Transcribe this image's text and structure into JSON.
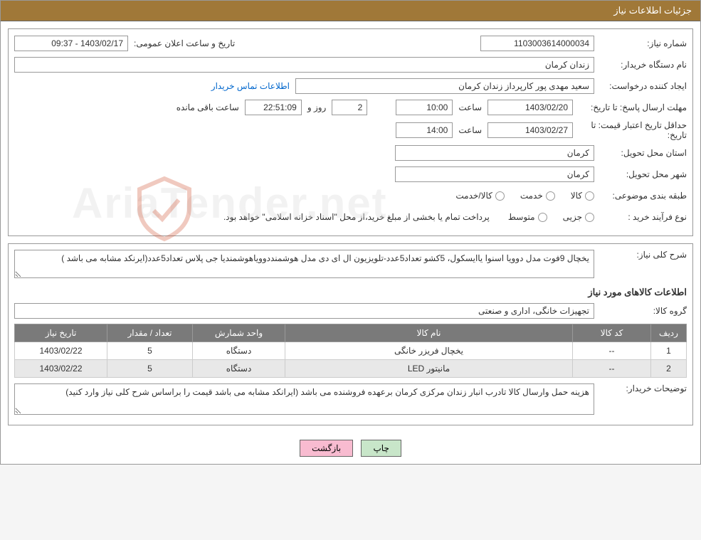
{
  "header": {
    "title": "جزئیات اطلاعات نیاز"
  },
  "fields": {
    "need_number_label": "شماره نیاز:",
    "need_number": "1103003614000034",
    "announce_label": "تاریخ و ساعت اعلان عمومی:",
    "announce_value": "1403/02/17 - 09:37",
    "buyer_org_label": "نام دستگاه خریدار:",
    "buyer_org": "زندان کرمان",
    "requester_label": "ایجاد کننده درخواست:",
    "requester": "سعید مهدی پور کارپرداز زندان کرمان",
    "contact_link": "اطلاعات تماس خریدار",
    "deadline_send_label": "مهلت ارسال پاسخ: تا تاریخ:",
    "deadline_send_date": "1403/02/20",
    "hour_label": "ساعت",
    "deadline_send_time": "10:00",
    "days_val": "2",
    "days_label": "روز و",
    "countdown": "22:51:09",
    "remaining_label": "ساعت باقی مانده",
    "price_valid_label": "حداقل تاریخ اعتبار قیمت: تا تاریخ:",
    "price_valid_date": "1403/02/27",
    "price_valid_time": "14:00",
    "delivery_prov_label": "استان محل تحویل:",
    "delivery_prov": "کرمان",
    "delivery_city_label": "شهر محل تحویل:",
    "delivery_city": "کرمان",
    "category_label": "طبقه بندی موضوعی:",
    "cat_goods": "کالا",
    "cat_service": "خدمت",
    "cat_goods_service": "کالا/خدمت",
    "purchase_type_label": "نوع فرآیند خرید :",
    "pt_minor": "جزیی",
    "pt_medium": "متوسط",
    "purchase_note": "پرداخت تمام یا بخشی از مبلغ خرید،از محل \"اسناد خزانه اسلامی\" خواهد بود."
  },
  "desc": {
    "summary_label": "شرح کلی نیاز:",
    "summary_text": "یخچال 9فوت مدل دوویا اسنوا یاایسکول، 5کشو تعداد5عدد-تلویزیون ال ای دی مدل هوشمنددوویاهوشمندیا جی پلاس تعداد5عدد(ایرنکد مشابه می باشد )",
    "items_header": "اطلاعات کالاهای مورد نیاز",
    "group_label": "گروه کالا:",
    "group_value": "تجهیزات خانگی، اداری و صنعتی",
    "buyer_notes_label": "توضیحات خریدار:",
    "buyer_notes": "هزینه حمل وارسال کالا تادرب انبار زندان مرکزی کرمان برعهده فروشنده می باشد (ایرانکد مشابه می باشد قیمت را براساس شرح کلی نیاز وارد کنید)"
  },
  "table": {
    "cols": {
      "row": "ردیف",
      "code": "کد کالا",
      "name": "نام کالا",
      "unit": "واحد شمارش",
      "qty": "تعداد / مقدار",
      "date": "تاریخ نیاز"
    },
    "rows": [
      {
        "row": "1",
        "code": "--",
        "name": "یخچال فریزر خانگی",
        "unit": "دستگاه",
        "qty": "5",
        "date": "1403/02/22"
      },
      {
        "row": "2",
        "code": "--",
        "name": "مانیتور LED",
        "unit": "دستگاه",
        "qty": "5",
        "date": "1403/02/22"
      }
    ]
  },
  "buttons": {
    "print": "چاپ",
    "back": "بازگشت"
  },
  "colors": {
    "header_bg": "#a07838",
    "table_header_bg": "#7a7a7a",
    "btn_print": "#c8e6c9",
    "btn_back": "#f8bbd0"
  }
}
